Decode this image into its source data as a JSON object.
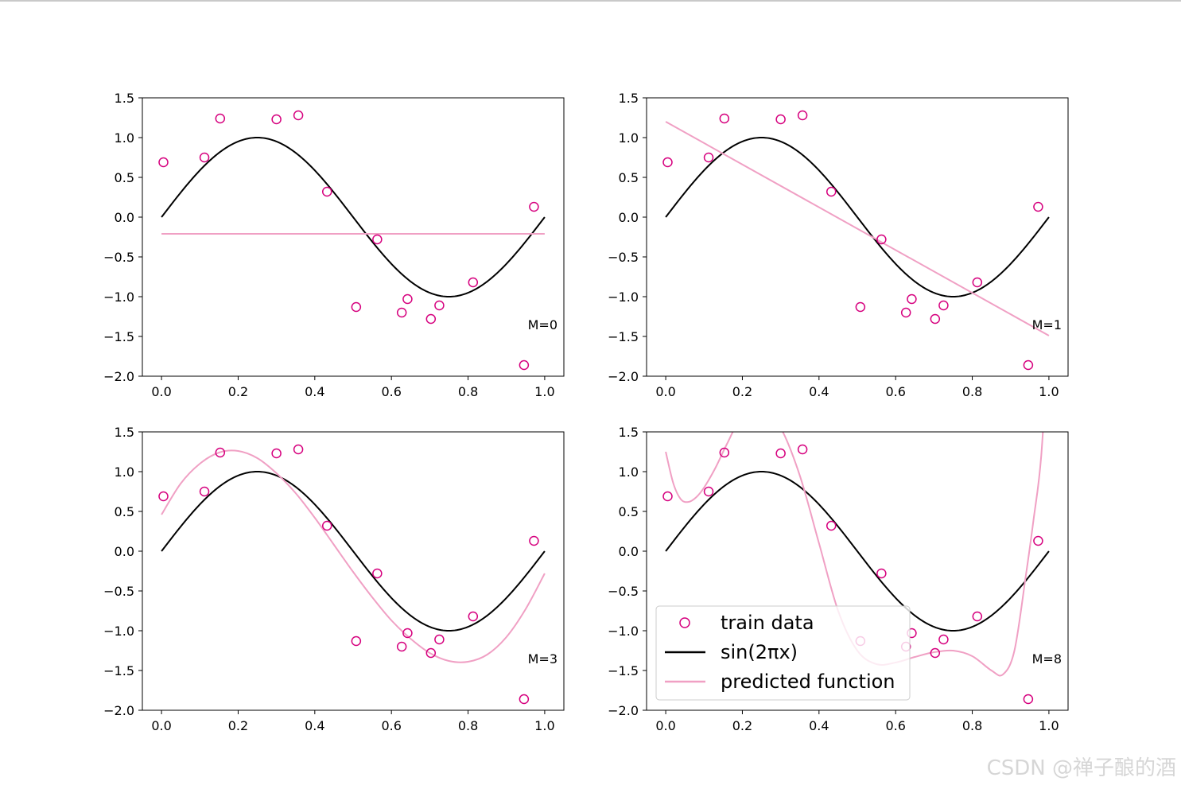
{
  "chart_data": [
    {
      "type": "scatter",
      "annotation": "M=0",
      "xlim": [
        -0.05,
        1.05
      ],
      "ylim": [
        -2.0,
        1.5
      ],
      "xticks": [
        "0.0",
        "0.2",
        "0.4",
        "0.6",
        "0.8",
        "1.0"
      ],
      "yticks": [
        "1.5",
        "1.0",
        "0.5",
        "0.0",
        "−0.5",
        "−1.0",
        "−1.5",
        "−2.0"
      ],
      "series": [
        {
          "kind": "scatter",
          "color": "#d6007e",
          "x": [
            0.005,
            0.112,
            0.153,
            0.3,
            0.357,
            0.432,
            0.508,
            0.563,
            0.627,
            0.642,
            0.703,
            0.725,
            0.813,
            0.946,
            0.972
          ],
          "y": [
            0.69,
            0.75,
            1.24,
            1.23,
            1.28,
            0.32,
            -1.13,
            -0.28,
            -1.2,
            -1.03,
            -1.28,
            -1.11,
            -0.82,
            -1.86,
            0.13
          ]
        },
        {
          "kind": "line",
          "color": "#000000",
          "function": "sin(2πx)"
        },
        {
          "kind": "line",
          "color": "#f0a0c4",
          "x": [
            0.0,
            1.0
          ],
          "y": [
            -0.21,
            -0.21
          ]
        }
      ]
    },
    {
      "type": "scatter",
      "annotation": "M=1",
      "xlim": [
        -0.05,
        1.05
      ],
      "ylim": [
        -2.0,
        1.5
      ],
      "xticks": [
        "0.0",
        "0.2",
        "0.4",
        "0.6",
        "0.8",
        "1.0"
      ],
      "yticks": [
        "1.5",
        "1.0",
        "0.5",
        "0.0",
        "−0.5",
        "−1.0",
        "−1.5",
        "−2.0"
      ],
      "series": [
        {
          "kind": "scatter",
          "color": "#d6007e",
          "x": [
            0.005,
            0.112,
            0.153,
            0.3,
            0.357,
            0.432,
            0.508,
            0.563,
            0.627,
            0.642,
            0.703,
            0.725,
            0.813,
            0.946,
            0.972
          ],
          "y": [
            0.69,
            0.75,
            1.24,
            1.23,
            1.28,
            0.32,
            -1.13,
            -0.28,
            -1.2,
            -1.03,
            -1.28,
            -1.11,
            -0.82,
            -1.86,
            0.13
          ]
        },
        {
          "kind": "line",
          "color": "#000000",
          "function": "sin(2πx)"
        },
        {
          "kind": "line",
          "color": "#f0a0c4",
          "x": [
            0.0,
            1.0
          ],
          "y": [
            1.2,
            -1.49
          ]
        }
      ]
    },
    {
      "type": "scatter",
      "annotation": "M=3",
      "xlim": [
        -0.05,
        1.05
      ],
      "ylim": [
        -2.0,
        1.5
      ],
      "xticks": [
        "0.0",
        "0.2",
        "0.4",
        "0.6",
        "0.8",
        "1.0"
      ],
      "yticks": [
        "1.5",
        "1.0",
        "0.5",
        "0.0",
        "−0.5",
        "−1.0",
        "−1.5",
        "−2.0"
      ],
      "series": [
        {
          "kind": "scatter",
          "color": "#d6007e",
          "x": [
            0.005,
            0.112,
            0.153,
            0.3,
            0.357,
            0.432,
            0.508,
            0.563,
            0.627,
            0.642,
            0.703,
            0.725,
            0.813,
            0.946,
            0.972
          ],
          "y": [
            0.69,
            0.75,
            1.24,
            1.23,
            1.28,
            0.32,
            -1.13,
            -0.28,
            -1.2,
            -1.03,
            -1.28,
            -1.11,
            -0.82,
            -1.86,
            0.13
          ]
        },
        {
          "kind": "line",
          "color": "#000000",
          "function": "sin(2πx)"
        },
        {
          "kind": "line",
          "color": "#f0a0c4",
          "x": [
            0.0,
            0.05,
            0.1,
            0.15,
            0.2,
            0.25,
            0.3,
            0.35,
            0.4,
            0.45,
            0.5,
            0.55,
            0.6,
            0.65,
            0.7,
            0.75,
            0.8,
            0.85,
            0.9,
            0.95,
            1.0
          ],
          "y": [
            0.46,
            0.85,
            1.1,
            1.24,
            1.26,
            1.17,
            0.98,
            0.73,
            0.42,
            0.08,
            -0.26,
            -0.58,
            -0.87,
            -1.1,
            -1.28,
            -1.38,
            -1.39,
            -1.3,
            -1.08,
            -0.73,
            -0.28
          ]
        }
      ]
    },
    {
      "type": "scatter",
      "annotation": "M=8",
      "xlim": [
        -0.05,
        1.05
      ],
      "ylim": [
        -2.0,
        1.5
      ],
      "xticks": [
        "0.0",
        "0.2",
        "0.4",
        "0.6",
        "0.8",
        "1.0"
      ],
      "yticks": [
        "1.5",
        "1.0",
        "0.5",
        "0.0",
        "−0.5",
        "−1.0",
        "−1.5",
        "−2.0"
      ],
      "series": [
        {
          "kind": "scatter",
          "color": "#d6007e",
          "x": [
            0.005,
            0.112,
            0.153,
            0.3,
            0.357,
            0.432,
            0.508,
            0.563,
            0.627,
            0.642,
            0.703,
            0.725,
            0.813,
            0.946,
            0.972
          ],
          "y": [
            0.69,
            0.75,
            1.24,
            1.23,
            1.28,
            0.32,
            -1.13,
            -0.28,
            -1.2,
            -1.03,
            -1.28,
            -1.11,
            -0.82,
            -1.86,
            0.13
          ]
        },
        {
          "kind": "line",
          "color": "#000000",
          "function": "sin(2πx)"
        },
        {
          "kind": "line",
          "color": "#f0a0c4",
          "x": [
            0.0,
            0.02,
            0.04,
            0.06,
            0.08,
            0.1,
            0.13,
            0.16,
            0.2,
            0.25,
            0.3,
            0.35,
            0.4,
            0.45,
            0.5,
            0.55,
            0.6,
            0.65,
            0.7,
            0.75,
            0.8,
            0.85,
            0.88,
            0.91,
            0.94,
            0.96,
            0.98,
            1.0
          ],
          "y": [
            1.25,
            0.85,
            0.65,
            0.62,
            0.68,
            0.8,
            1.05,
            1.35,
            1.7,
            1.8,
            1.55,
            0.95,
            0.1,
            -0.75,
            -1.25,
            -1.42,
            -1.4,
            -1.33,
            -1.27,
            -1.25,
            -1.32,
            -1.5,
            -1.55,
            -1.25,
            -0.3,
            0.4,
            1.2,
            2.8
          ]
        }
      ],
      "legend": {
        "placement": "lower-left",
        "entries": [
          "train data",
          "sin(2πx)",
          "predicted function"
        ]
      }
    }
  ],
  "watermark": "CSDN @禅子酿的酒"
}
